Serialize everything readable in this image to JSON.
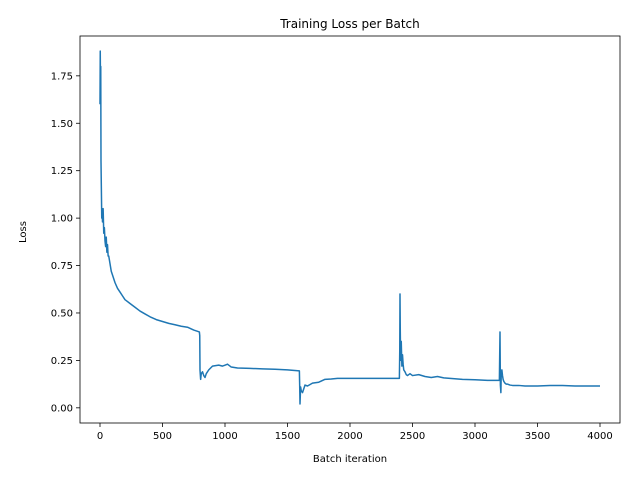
{
  "chart_data": {
    "type": "line",
    "title": "Training Loss per Batch",
    "xlabel": "Batch iteration",
    "ylabel": "Loss",
    "xlim": [
      -160,
      4160
    ],
    "ylim": [
      -0.08,
      1.96
    ],
    "xticks": [
      0,
      500,
      1000,
      1500,
      2000,
      2500,
      3000,
      3500,
      4000
    ],
    "xtick_labels": [
      "0",
      "500",
      "1000",
      "1500",
      "2000",
      "2500",
      "3000",
      "3500",
      "4000"
    ],
    "yticks": [
      0.0,
      0.25,
      0.5,
      0.75,
      1.0,
      1.25,
      1.5,
      1.75
    ],
    "ytick_labels": [
      "0.00",
      "0.25",
      "0.50",
      "0.75",
      "1.00",
      "1.25",
      "1.50",
      "1.75"
    ],
    "grid": false,
    "series": [
      {
        "color": "#1f77b4",
        "x": [
          0,
          2,
          4,
          6,
          8,
          10,
          12,
          14,
          16,
          20,
          25,
          30,
          35,
          40,
          45,
          50,
          55,
          60,
          65,
          70,
          80,
          90,
          100,
          120,
          140,
          160,
          180,
          200,
          240,
          280,
          320,
          360,
          400,
          450,
          500,
          550,
          600,
          650,
          700,
          750,
          795,
          798,
          800,
          805,
          810,
          820,
          830,
          840,
          850,
          870,
          900,
          950,
          980,
          1000,
          1020,
          1050,
          1100,
          1200,
          1300,
          1400,
          1500,
          1595,
          1598,
          1600,
          1605,
          1610,
          1620,
          1630,
          1640,
          1660,
          1700,
          1750,
          1800,
          1850,
          1900,
          1950,
          2000,
          2100,
          2200,
          2300,
          2395,
          2398,
          2400,
          2402,
          2405,
          2410,
          2415,
          2420,
          2425,
          2430,
          2440,
          2450,
          2460,
          2480,
          2500,
          2550,
          2600,
          2650,
          2700,
          2750,
          2800,
          2900,
          3000,
          3100,
          3195,
          3198,
          3200,
          3203,
          3207,
          3210,
          3215,
          3220,
          3225,
          3230,
          3240,
          3250,
          3260,
          3280,
          3300,
          3350,
          3400,
          3500,
          3600,
          3700,
          3800,
          3900,
          4000
        ],
        "y": [
          1.6,
          1.88,
          1.7,
          1.8,
          1.3,
          1.2,
          1.1,
          1.0,
          1.05,
          0.98,
          1.05,
          0.92,
          0.95,
          0.88,
          0.85,
          0.9,
          0.82,
          0.86,
          0.8,
          0.8,
          0.76,
          0.72,
          0.7,
          0.66,
          0.63,
          0.61,
          0.59,
          0.57,
          0.55,
          0.53,
          0.51,
          0.495,
          0.48,
          0.465,
          0.455,
          0.445,
          0.438,
          0.43,
          0.425,
          0.41,
          0.4,
          0.38,
          0.2,
          0.15,
          0.18,
          0.19,
          0.17,
          0.16,
          0.18,
          0.2,
          0.22,
          0.225,
          0.22,
          0.225,
          0.23,
          0.215,
          0.21,
          0.208,
          0.205,
          0.203,
          0.2,
          0.195,
          0.1,
          0.02,
          0.11,
          0.09,
          0.08,
          0.1,
          0.12,
          0.115,
          0.13,
          0.135,
          0.15,
          0.152,
          0.155,
          0.155,
          0.155,
          0.155,
          0.155,
          0.155,
          0.155,
          0.3,
          0.6,
          0.42,
          0.25,
          0.35,
          0.22,
          0.28,
          0.23,
          0.2,
          0.19,
          0.175,
          0.17,
          0.18,
          0.17,
          0.175,
          0.165,
          0.16,
          0.165,
          0.158,
          0.155,
          0.15,
          0.148,
          0.145,
          0.145,
          0.3,
          0.4,
          0.12,
          0.08,
          0.18,
          0.2,
          0.17,
          0.15,
          0.14,
          0.13,
          0.125,
          0.125,
          0.12,
          0.118,
          0.118,
          0.115,
          0.115,
          0.118,
          0.118,
          0.115,
          0.115,
          0.115
        ]
      }
    ]
  }
}
